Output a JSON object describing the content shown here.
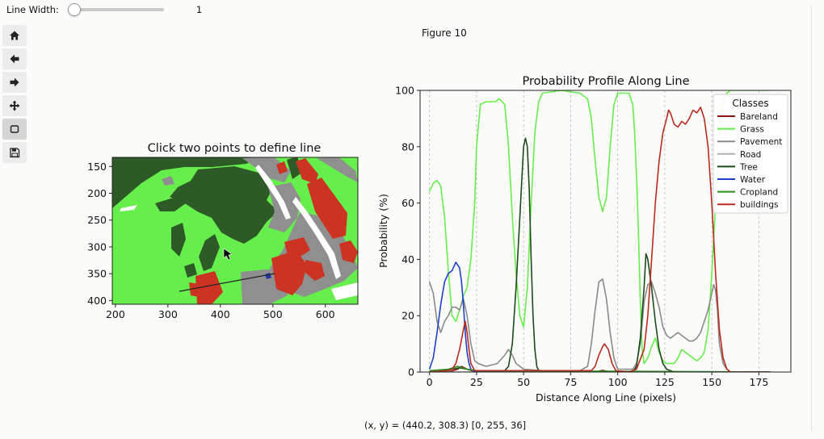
{
  "slider": {
    "label": "Line Width:",
    "value": "1",
    "level": 0.0
  },
  "toolbar": {
    "buttons": [
      "home",
      "back",
      "forward",
      "pan",
      "zoom",
      "save"
    ]
  },
  "figure": {
    "title": "Figure 10"
  },
  "status": {
    "coords": "(x, y) = (440.2, 308.3) [0, 255, 36]"
  },
  "image_axes": {
    "title": "Click two points to define line",
    "xticks": [
      "200",
      "300",
      "400",
      "500",
      "600"
    ],
    "yticks": [
      "150",
      "200",
      "250",
      "300",
      "350",
      "400"
    ]
  },
  "colors": {
    "grass": "#66ee4c",
    "tree": "#2d5a27",
    "building": "#cc3322",
    "pavement": "#8f8f8f",
    "road": "#ffffff",
    "water": "#2233aa"
  },
  "chart_data": {
    "type": "line",
    "title": "Probability Profile Along Line",
    "xlabel": "Distance Along Line (pixels)",
    "ylabel": "Probability (%)",
    "xlim": [
      -5,
      192
    ],
    "ylim": [
      0,
      100
    ],
    "xticks": [
      "0",
      "25",
      "50",
      "75",
      "100",
      "125",
      "150",
      "175"
    ],
    "yticks": [
      "0",
      "20",
      "40",
      "60",
      "80",
      "100"
    ],
    "vlines": [
      0,
      25,
      50,
      75,
      100,
      125,
      150,
      175
    ],
    "legend": {
      "title": "Classes",
      "position": "top-right"
    },
    "series": [
      {
        "name": "Bareland",
        "color": "#8b1a10",
        "points": [
          [
            0,
            0
          ],
          [
            10,
            0
          ],
          [
            15,
            1
          ],
          [
            17,
            2
          ],
          [
            20,
            1
          ],
          [
            25,
            0
          ],
          [
            88,
            0
          ],
          [
            92,
            0.6
          ],
          [
            96,
            0
          ],
          [
            181,
            0
          ]
        ]
      },
      {
        "name": "Grass",
        "color": "#66ee4c",
        "points": [
          [
            0,
            64
          ],
          [
            2,
            67
          ],
          [
            4,
            68
          ],
          [
            6,
            66
          ],
          [
            8,
            55
          ],
          [
            10,
            36
          ],
          [
            12,
            20
          ],
          [
            14,
            18
          ],
          [
            16,
            22
          ],
          [
            18,
            27
          ],
          [
            20,
            30
          ],
          [
            22,
            40
          ],
          [
            24,
            60
          ],
          [
            25,
            80
          ],
          [
            27,
            95
          ],
          [
            30,
            96
          ],
          [
            35,
            96
          ],
          [
            37,
            97
          ],
          [
            40,
            95
          ],
          [
            42,
            80
          ],
          [
            44,
            55
          ],
          [
            46,
            35
          ],
          [
            48,
            20
          ],
          [
            50,
            16
          ],
          [
            52,
            30
          ],
          [
            54,
            60
          ],
          [
            56,
            85
          ],
          [
            58,
            96
          ],
          [
            60,
            99
          ],
          [
            70,
            100
          ],
          [
            80,
            99
          ],
          [
            84,
            97
          ],
          [
            86,
            90
          ],
          [
            88,
            75
          ],
          [
            90,
            62
          ],
          [
            92,
            57
          ],
          [
            94,
            62
          ],
          [
            96,
            80
          ],
          [
            98,
            95
          ],
          [
            100,
            99
          ],
          [
            106,
            99
          ],
          [
            108,
            95
          ],
          [
            109,
            85
          ],
          [
            110,
            70
          ],
          [
            111,
            50
          ],
          [
            112,
            25
          ],
          [
            113,
            8
          ],
          [
            114,
            3
          ],
          [
            116,
            5
          ],
          [
            118,
            9
          ],
          [
            120,
            12
          ],
          [
            122,
            7
          ],
          [
            124,
            4
          ],
          [
            126,
            3
          ],
          [
            128,
            3
          ],
          [
            130,
            3
          ],
          [
            132,
            5
          ],
          [
            134,
            8
          ],
          [
            136,
            7
          ],
          [
            138,
            6
          ],
          [
            140,
            5
          ],
          [
            142,
            4
          ],
          [
            144,
            5
          ],
          [
            146,
            7
          ],
          [
            148,
            15
          ],
          [
            150,
            35
          ],
          [
            152,
            60
          ],
          [
            154,
            85
          ],
          [
            156,
            96
          ],
          [
            158,
            99
          ],
          [
            160,
            100
          ],
          [
            181,
            100
          ]
        ]
      },
      {
        "name": "Pavement",
        "color": "#8a8a8a",
        "points": [
          [
            0,
            32
          ],
          [
            2,
            28
          ],
          [
            4,
            18
          ],
          [
            6,
            14
          ],
          [
            8,
            18
          ],
          [
            10,
            20
          ],
          [
            12,
            23
          ],
          [
            14,
            23
          ],
          [
            16,
            22
          ],
          [
            18,
            26
          ],
          [
            20,
            20
          ],
          [
            22,
            10
          ],
          [
            24,
            4
          ],
          [
            26,
            3
          ],
          [
            30,
            2
          ],
          [
            36,
            3
          ],
          [
            40,
            6
          ],
          [
            42,
            8
          ],
          [
            44,
            6
          ],
          [
            46,
            3
          ],
          [
            50,
            1
          ],
          [
            60,
            0.5
          ],
          [
            80,
            0.5
          ],
          [
            84,
            2
          ],
          [
            86,
            10
          ],
          [
            88,
            22
          ],
          [
            90,
            32
          ],
          [
            92,
            33
          ],
          [
            94,
            26
          ],
          [
            96,
            14
          ],
          [
            98,
            5
          ],
          [
            100,
            1
          ],
          [
            108,
            1
          ],
          [
            110,
            3
          ],
          [
            112,
            10
          ],
          [
            114,
            25
          ],
          [
            116,
            31
          ],
          [
            118,
            32
          ],
          [
            120,
            28
          ],
          [
            122,
            23
          ],
          [
            124,
            16
          ],
          [
            126,
            13
          ],
          [
            128,
            12
          ],
          [
            130,
            13
          ],
          [
            132,
            14
          ],
          [
            134,
            13
          ],
          [
            136,
            12
          ],
          [
            138,
            11
          ],
          [
            140,
            11
          ],
          [
            142,
            12
          ],
          [
            144,
            14
          ],
          [
            146,
            18
          ],
          [
            148,
            22
          ],
          [
            150,
            28
          ],
          [
            151,
            31
          ],
          [
            152,
            29
          ],
          [
            153,
            22
          ],
          [
            154,
            10
          ],
          [
            156,
            3
          ],
          [
            158,
            1
          ],
          [
            160,
            0
          ],
          [
            181,
            0
          ]
        ]
      },
      {
        "name": "Road",
        "color": "#b0b0b0",
        "points": [
          [
            0,
            0
          ],
          [
            181,
            0
          ]
        ]
      },
      {
        "name": "Tree",
        "color": "#1f4a1c",
        "points": [
          [
            0,
            0
          ],
          [
            8,
            0.5
          ],
          [
            12,
            1
          ],
          [
            16,
            1.5
          ],
          [
            20,
            1
          ],
          [
            24,
            0.5
          ],
          [
            40,
            0.5
          ],
          [
            42,
            2
          ],
          [
            44,
            10
          ],
          [
            46,
            30
          ],
          [
            48,
            55
          ],
          [
            50,
            80
          ],
          [
            51,
            83
          ],
          [
            52,
            80
          ],
          [
            53,
            65
          ],
          [
            54,
            40
          ],
          [
            55,
            20
          ],
          [
            56,
            8
          ],
          [
            57,
            2
          ],
          [
            58,
            0.5
          ],
          [
            108,
            0
          ],
          [
            110,
            2
          ],
          [
            112,
            12
          ],
          [
            114,
            30
          ],
          [
            115,
            42
          ],
          [
            116,
            40
          ],
          [
            118,
            30
          ],
          [
            120,
            18
          ],
          [
            122,
            8
          ],
          [
            124,
            3
          ],
          [
            126,
            1
          ],
          [
            130,
            0
          ],
          [
            181,
            0
          ]
        ]
      },
      {
        "name": "Water",
        "color": "#1f3fcc",
        "points": [
          [
            0,
            1
          ],
          [
            2,
            5
          ],
          [
            4,
            14
          ],
          [
            6,
            24
          ],
          [
            8,
            32
          ],
          [
            10,
            35
          ],
          [
            12,
            36
          ],
          [
            14,
            39
          ],
          [
            16,
            37
          ],
          [
            17,
            32
          ],
          [
            18,
            24
          ],
          [
            19,
            14
          ],
          [
            20,
            7
          ],
          [
            21,
            3
          ],
          [
            22,
            1
          ],
          [
            24,
            0
          ],
          [
            181,
            0
          ]
        ]
      },
      {
        "name": "Cropland",
        "color": "#2e8b22",
        "points": [
          [
            0,
            0.5
          ],
          [
            10,
            1
          ],
          [
            15,
            2
          ],
          [
            20,
            1
          ],
          [
            25,
            0.5
          ],
          [
            181,
            0
          ]
        ]
      },
      {
        "name": "buildings",
        "color": "#bb2a1e",
        "points": [
          [
            0,
            0
          ],
          [
            10,
            0.5
          ],
          [
            12,
            1
          ],
          [
            14,
            3
          ],
          [
            16,
            8
          ],
          [
            18,
            15
          ],
          [
            19,
            18
          ],
          [
            20,
            14
          ],
          [
            21,
            8
          ],
          [
            22,
            3
          ],
          [
            24,
            0.5
          ],
          [
            86,
            0.5
          ],
          [
            88,
            2
          ],
          [
            90,
            6
          ],
          [
            92,
            9
          ],
          [
            93,
            10
          ],
          [
            95,
            8
          ],
          [
            97,
            3
          ],
          [
            99,
            0.5
          ],
          [
            106,
            0
          ],
          [
            110,
            1
          ],
          [
            114,
            8
          ],
          [
            116,
            20
          ],
          [
            118,
            40
          ],
          [
            120,
            60
          ],
          [
            122,
            75
          ],
          [
            124,
            85
          ],
          [
            126,
            90
          ],
          [
            127,
            93
          ],
          [
            128,
            92
          ],
          [
            130,
            88
          ],
          [
            132,
            87
          ],
          [
            134,
            89
          ],
          [
            136,
            88
          ],
          [
            138,
            90
          ],
          [
            140,
            93
          ],
          [
            142,
            92
          ],
          [
            144,
            94
          ],
          [
            146,
            90
          ],
          [
            148,
            80
          ],
          [
            150,
            60
          ],
          [
            152,
            35
          ],
          [
            154,
            15
          ],
          [
            156,
            5
          ],
          [
            158,
            1
          ],
          [
            160,
            0
          ],
          [
            181,
            0
          ]
        ]
      }
    ]
  }
}
